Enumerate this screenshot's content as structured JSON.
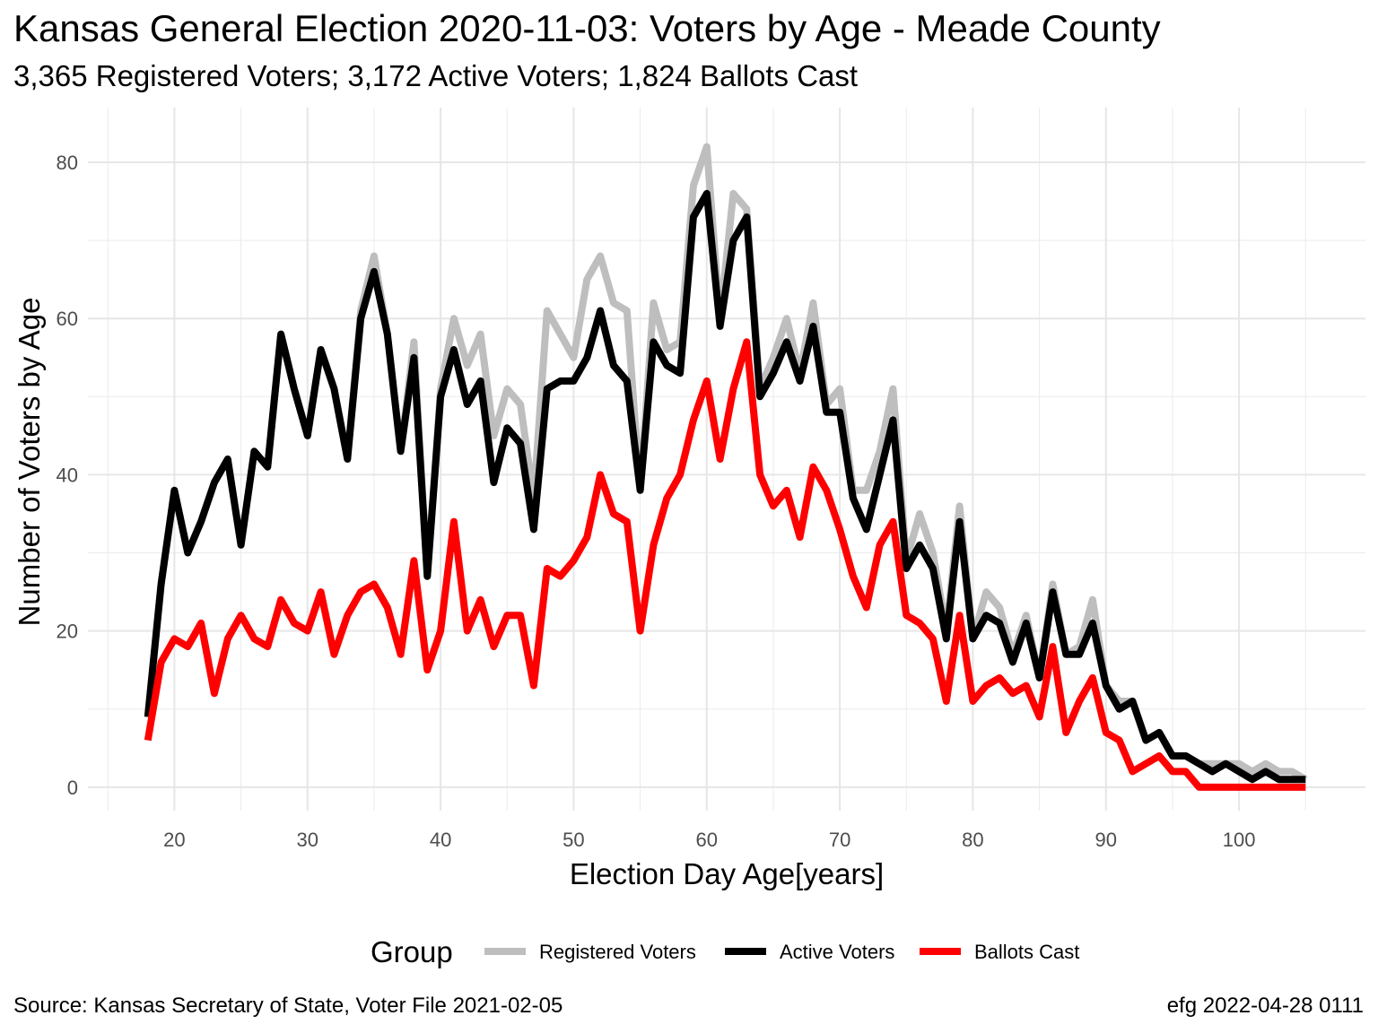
{
  "chart_data": {
    "type": "line",
    "title": "Kansas General Election 2020-11-03:  Voters by Age - Meade County",
    "subtitle": "3,365 Registered Voters; 3,172 Active Voters; 1,824 Ballots Cast",
    "xlabel": "Election Day Age[years]",
    "ylabel": "Number of Voters by Age",
    "xlim": [
      13.5,
      109.5
    ],
    "ylim": [
      -3,
      87
    ],
    "x_ticks": [
      20,
      30,
      40,
      50,
      60,
      70,
      80,
      90,
      100
    ],
    "y_ticks": [
      0,
      20,
      40,
      60,
      80
    ],
    "grid": true,
    "legend": {
      "title": "Group",
      "position": "bottom"
    },
    "x": [
      18,
      19,
      20,
      21,
      22,
      23,
      24,
      25,
      26,
      27,
      28,
      29,
      30,
      31,
      32,
      33,
      34,
      35,
      36,
      37,
      38,
      39,
      40,
      41,
      42,
      43,
      44,
      45,
      46,
      47,
      48,
      49,
      50,
      51,
      52,
      53,
      54,
      55,
      56,
      57,
      58,
      59,
      60,
      61,
      62,
      63,
      64,
      65,
      66,
      67,
      68,
      69,
      70,
      71,
      72,
      73,
      74,
      75,
      76,
      77,
      78,
      79,
      80,
      81,
      82,
      83,
      84,
      85,
      86,
      87,
      88,
      89,
      90,
      91,
      92,
      93,
      94,
      95,
      96,
      97,
      98,
      99,
      100,
      101,
      102,
      103,
      104,
      105
    ],
    "series": [
      {
        "name": "Registered Voters",
        "color": "#bebebe",
        "values": [
          9,
          26,
          38,
          30,
          34,
          39,
          42,
          31,
          43,
          41,
          58,
          51,
          45,
          56,
          51,
          42,
          61,
          68,
          58,
          43,
          57,
          27,
          51,
          60,
          54,
          58,
          45,
          51,
          49,
          37,
          61,
          58,
          55,
          65,
          68,
          62,
          61,
          38,
          62,
          56,
          57,
          77,
          82,
          60,
          76,
          74,
          51,
          55,
          60,
          53,
          62,
          49,
          51,
          38,
          38,
          43,
          51,
          29,
          35,
          30,
          20,
          36,
          19,
          25,
          23,
          17,
          22,
          14,
          26,
          17,
          18,
          24,
          13,
          11,
          11,
          6,
          7,
          4,
          4,
          3,
          3,
          3,
          3,
          2,
          3,
          2,
          2,
          1
        ]
      },
      {
        "name": "Active Voters",
        "color": "#000000",
        "values": [
          9,
          26,
          38,
          30,
          34,
          39,
          42,
          31,
          43,
          41,
          58,
          51,
          45,
          56,
          51,
          42,
          60,
          66,
          58,
          43,
          55,
          27,
          50,
          56,
          49,
          52,
          39,
          46,
          44,
          33,
          51,
          52,
          52,
          55,
          61,
          54,
          52,
          38,
          57,
          54,
          53,
          73,
          76,
          59,
          70,
          73,
          50,
          53,
          57,
          52,
          59,
          48,
          48,
          37,
          33,
          40,
          47,
          28,
          31,
          28,
          19,
          34,
          19,
          22,
          21,
          16,
          21,
          14,
          25,
          17,
          17,
          21,
          13,
          10,
          11,
          6,
          7,
          4,
          4,
          3,
          2,
          3,
          2,
          1,
          2,
          1,
          1,
          1
        ]
      },
      {
        "name": "Ballots Cast",
        "color": "#ff0000",
        "values": [
          6,
          16,
          19,
          18,
          21,
          12,
          19,
          22,
          19,
          18,
          24,
          21,
          20,
          25,
          17,
          22,
          25,
          26,
          23,
          17,
          29,
          15,
          20,
          34,
          20,
          24,
          18,
          22,
          22,
          13,
          28,
          27,
          29,
          32,
          40,
          35,
          34,
          20,
          31,
          37,
          40,
          47,
          52,
          42,
          51,
          57,
          40,
          36,
          38,
          32,
          41,
          38,
          33,
          27,
          23,
          31,
          34,
          22,
          21,
          19,
          11,
          22,
          11,
          13,
          14,
          12,
          13,
          9,
          18,
          7,
          11,
          14,
          7,
          6,
          2,
          3,
          4,
          2,
          2,
          0,
          0,
          0,
          0,
          0,
          0,
          0,
          0,
          0
        ]
      }
    ]
  },
  "caption_left": "Source:  Kansas Secretary of State, Voter File  2021-02-05",
  "caption_right": "efg 2022-04-28 0111"
}
